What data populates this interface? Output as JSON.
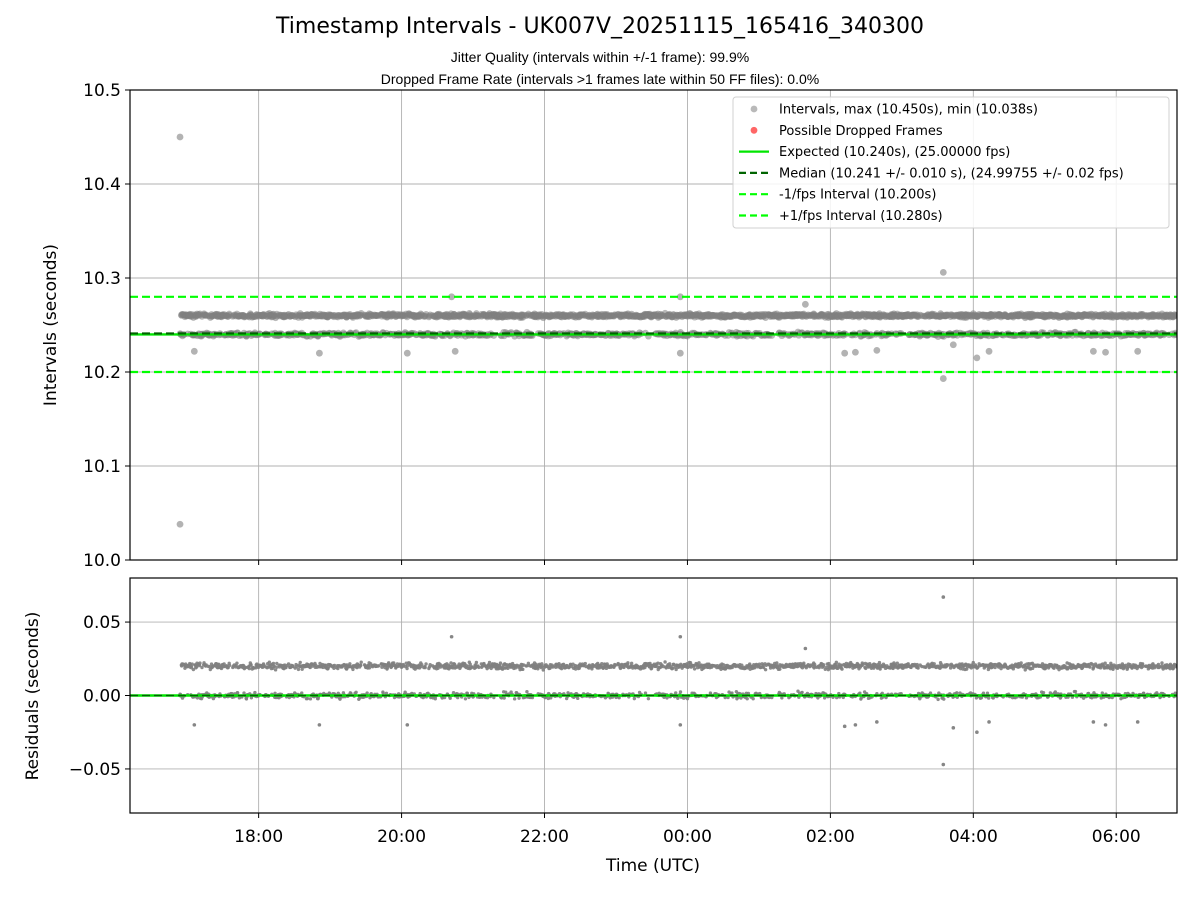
{
  "chart_data": [
    {
      "type": "scatter",
      "title": "Timestamp Intervals - UK007V_20251115_165416_340300",
      "subtitle_1": "Jitter Quality (intervals within +/-1 frame): 99.9%",
      "subtitle_2": "Dropped Frame Rate (intervals >1 frames late within 50 FF files): 0.0%",
      "xlabel": "",
      "ylabel": "Intervals (seconds)",
      "xlim_hours": [
        16.2,
        30.85
      ],
      "ylim": [
        10.0,
        10.5
      ],
      "yticks": [
        "10.0",
        "10.1",
        "10.2",
        "10.3",
        "10.4",
        "10.5"
      ],
      "grid": true,
      "legend_position": "upper-right",
      "expected_interval": 10.24,
      "median_interval": 10.241,
      "minus_interval": 10.2,
      "plus_interval": 10.28,
      "max_interval": 10.45,
      "min_interval": 10.038,
      "start_hour": 16.9,
      "end_hour": 30.85,
      "band_levels": [
        10.26,
        10.24
      ],
      "colors": {
        "intervals": "#808080",
        "dropped": "#ff0000",
        "expected": "#00e600",
        "median": "#006400",
        "bounds": "#00ff00"
      },
      "legend": [
        {
          "key": "intervals",
          "style": "dot",
          "label": "Intervals, max (10.450s), min (10.038s)"
        },
        {
          "key": "dropped",
          "style": "dot",
          "label": "Possible Dropped Frames"
        },
        {
          "key": "expected",
          "style": "solid",
          "label": "Expected (10.240s), (25.00000 fps)"
        },
        {
          "key": "median",
          "style": "dashed",
          "label": "Median (10.241 +/- 0.010 s), (24.99755 +/- 0.02 fps)"
        },
        {
          "key": "minus",
          "style": "dashed",
          "label": "-1/fps Interval (10.200s)"
        },
        {
          "key": "plus",
          "style": "dashed",
          "label": "+1/fps Interval (10.280s)"
        }
      ],
      "outliers": [
        {
          "x": 16.9,
          "y": 10.45
        },
        {
          "x": 16.9,
          "y": 10.038
        },
        {
          "x": 17.1,
          "y": 10.222
        },
        {
          "x": 18.85,
          "y": 10.22
        },
        {
          "x": 20.08,
          "y": 10.22
        },
        {
          "x": 20.7,
          "y": 10.28
        },
        {
          "x": 20.75,
          "y": 10.222
        },
        {
          "x": 23.9,
          "y": 10.28
        },
        {
          "x": 23.9,
          "y": 10.22
        },
        {
          "x": 25.65,
          "y": 10.272
        },
        {
          "x": 26.2,
          "y": 10.22
        },
        {
          "x": 26.35,
          "y": 10.221
        },
        {
          "x": 26.65,
          "y": 10.223
        },
        {
          "x": 27.58,
          "y": 10.306
        },
        {
          "x": 27.58,
          "y": 10.193
        },
        {
          "x": 27.72,
          "y": 10.229
        },
        {
          "x": 28.05,
          "y": 10.215
        },
        {
          "x": 28.22,
          "y": 10.222
        },
        {
          "x": 29.68,
          "y": 10.222
        },
        {
          "x": 29.85,
          "y": 10.221
        },
        {
          "x": 30.3,
          "y": 10.222
        }
      ]
    },
    {
      "type": "scatter",
      "title": "",
      "xlabel": "Time (UTC)",
      "ylabel": "Residuals (seconds)",
      "xlim_hours": [
        16.2,
        30.85
      ],
      "ylim": [
        -0.08,
        0.08
      ],
      "yticks": [
        "0.05",
        "0.00",
        "−0.05"
      ],
      "ytick_values": [
        0.05,
        0.0,
        -0.05
      ],
      "xticks": [
        "18:00",
        "20:00",
        "22:00",
        "00:00",
        "02:00",
        "04:00",
        "06:00"
      ],
      "xtick_hours": [
        18,
        20,
        22,
        24,
        26,
        28,
        30
      ],
      "grid": true,
      "zero_line": 0.0,
      "band_levels": [
        0.02,
        0.0
      ],
      "colors": {
        "residuals": "#808080",
        "zero": "#00e600",
        "zero_dash": "#006400"
      },
      "outliers": [
        {
          "x": 16.9,
          "y": 0.0
        },
        {
          "x": 17.1,
          "y": -0.02
        },
        {
          "x": 18.85,
          "y": -0.02
        },
        {
          "x": 20.08,
          "y": -0.02
        },
        {
          "x": 20.7,
          "y": 0.04
        },
        {
          "x": 23.9,
          "y": 0.04
        },
        {
          "x": 23.9,
          "y": -0.02
        },
        {
          "x": 25.65,
          "y": 0.032
        },
        {
          "x": 26.2,
          "y": -0.021
        },
        {
          "x": 26.35,
          "y": -0.02
        },
        {
          "x": 26.65,
          "y": -0.018
        },
        {
          "x": 27.58,
          "y": 0.067
        },
        {
          "x": 27.58,
          "y": -0.047
        },
        {
          "x": 27.72,
          "y": -0.022
        },
        {
          "x": 28.05,
          "y": -0.025
        },
        {
          "x": 28.22,
          "y": -0.018
        },
        {
          "x": 29.68,
          "y": -0.018
        },
        {
          "x": 29.85,
          "y": -0.02
        },
        {
          "x": 30.3,
          "y": -0.018
        }
      ]
    }
  ]
}
